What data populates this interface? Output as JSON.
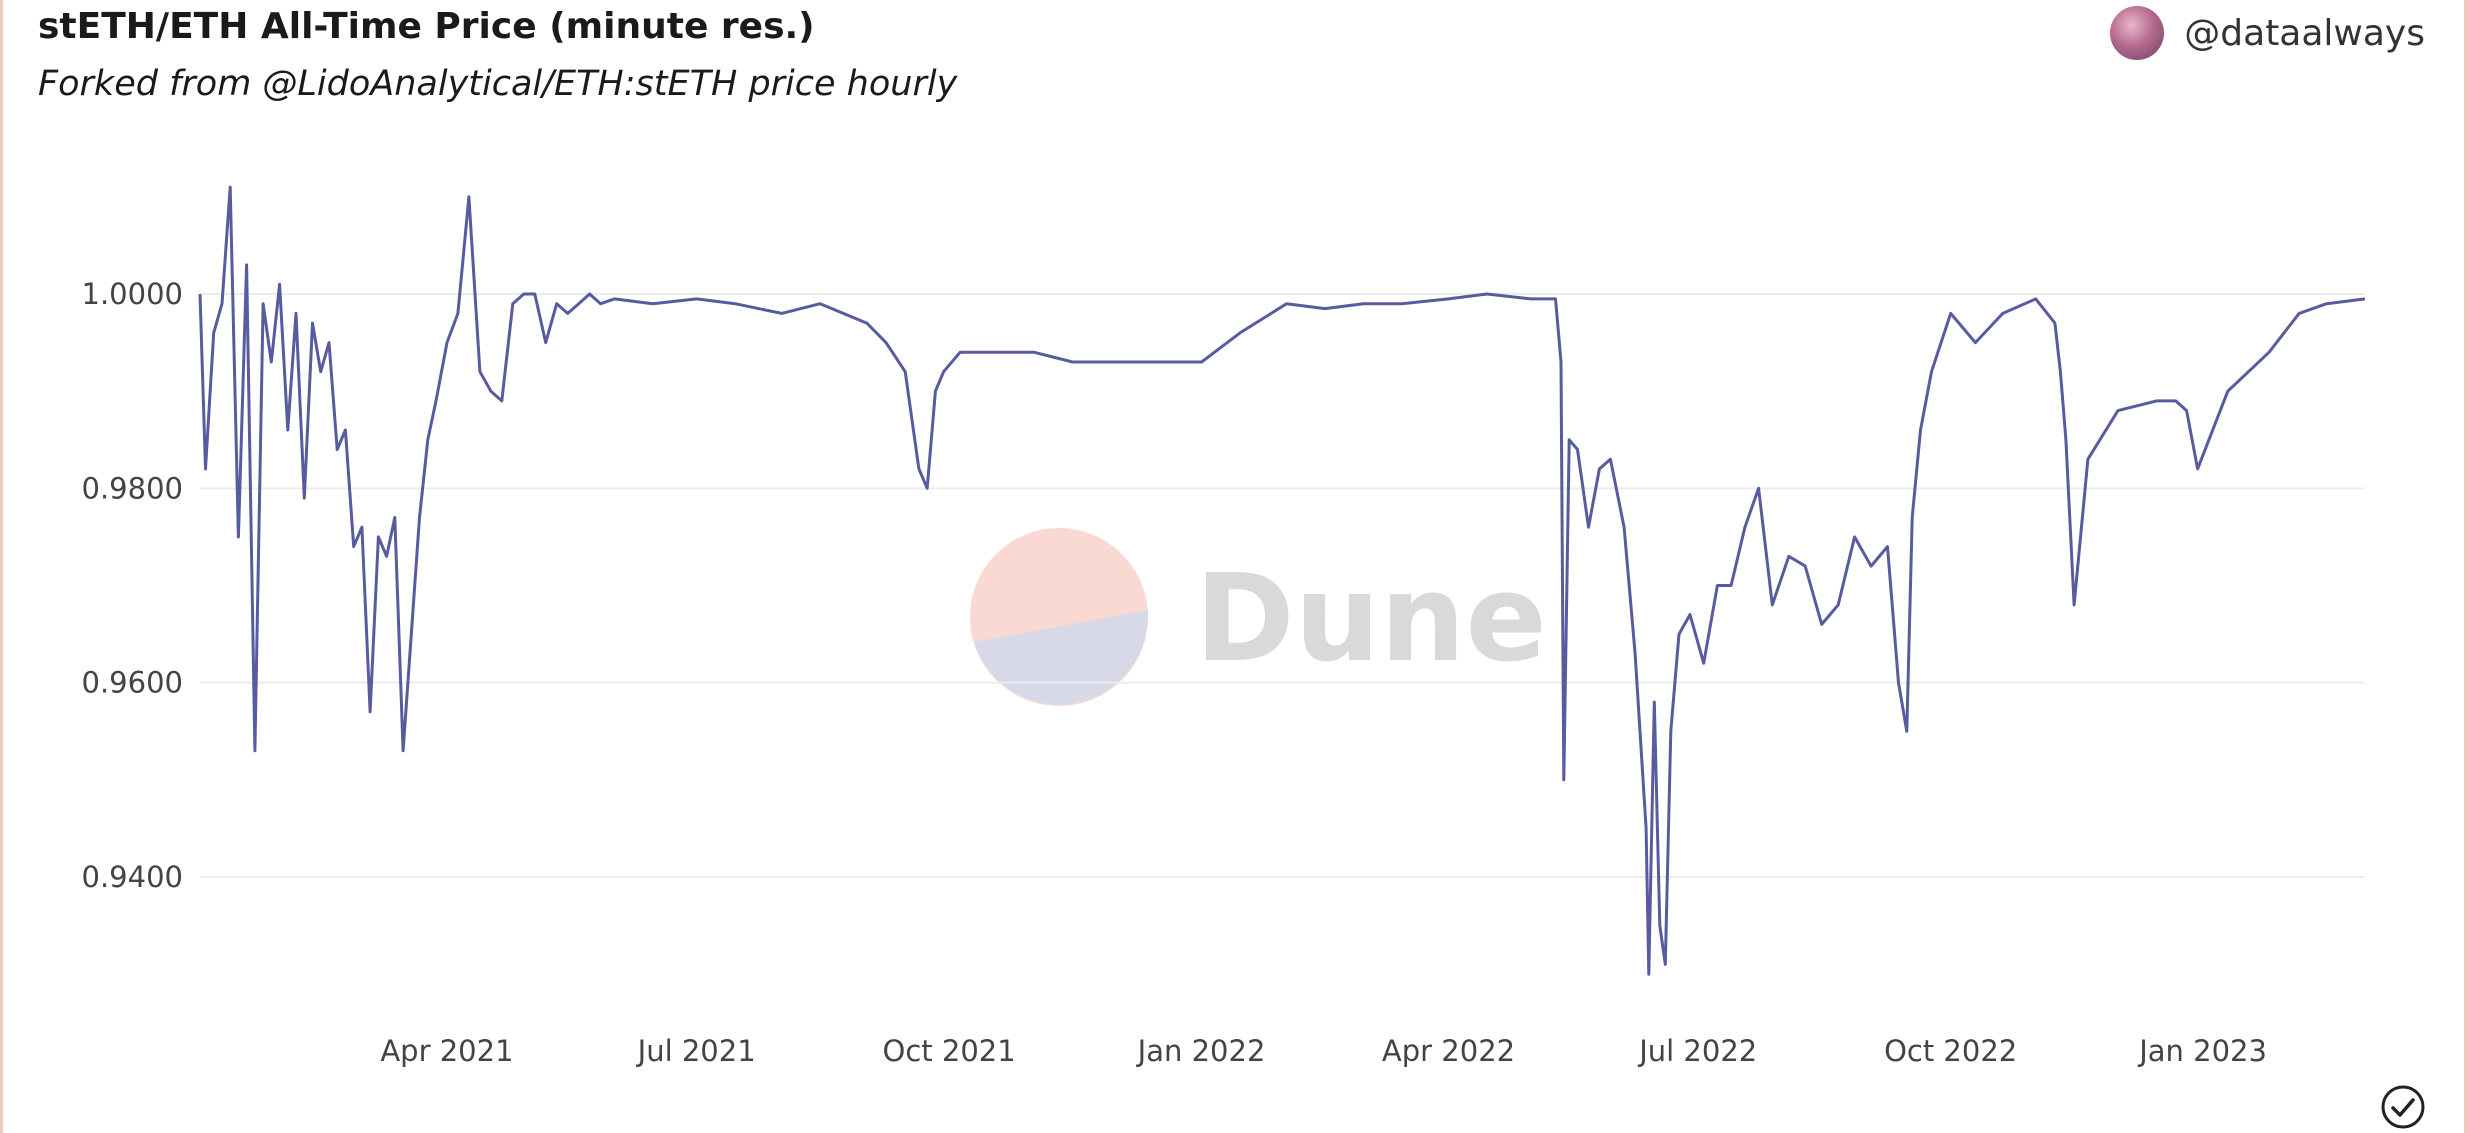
{
  "header": {
    "title": "stETH/ETH All-Time Price (minute res.)",
    "subtitle": "Forked from @LidoAnalytical/ETH:stETH price hourly",
    "user_handle": "@dataalways"
  },
  "watermark": {
    "text": "Dune"
  },
  "colors": {
    "line": "#575c9e",
    "grid": "#ececec",
    "watermark_top": "#f9d9d2",
    "watermark_bottom": "#d8d9e8"
  },
  "icons": {
    "avatar": "user-avatar",
    "status": "check-circle-icon"
  },
  "chart_data": {
    "type": "line",
    "title": "stETH/ETH All-Time Price (minute res.)",
    "xlabel": "",
    "ylabel": "",
    "x_start": "2021-01-01",
    "x_end": "2023-03-01",
    "ylim": [
      0.925,
      1.0135
    ],
    "y_ticks": [
      "0.9400",
      "0.9600",
      "0.9800",
      "1.0000"
    ],
    "y_tick_values": [
      0.94,
      0.96,
      0.98,
      1.0
    ],
    "x_ticks": [
      "Apr 2021",
      "Jul 2021",
      "Oct 2021",
      "Jan 2022",
      "Apr 2022",
      "Jul 2022",
      "Oct 2022",
      "Jan 2023"
    ],
    "x_tick_dates": [
      "2021-04-01",
      "2021-07-01",
      "2021-10-01",
      "2022-01-01",
      "2022-04-01",
      "2022-07-01",
      "2022-10-01",
      "2023-01-01"
    ],
    "grid": true,
    "legend": "none",
    "series": [
      {
        "x": [
          "2021-01-01",
          "2021-01-03",
          "2021-01-06",
          "2021-01-09",
          "2021-01-12",
          "2021-01-15",
          "2021-01-18",
          "2021-01-21",
          "2021-01-24",
          "2021-01-27",
          "2021-01-30",
          "2021-02-02",
          "2021-02-05",
          "2021-02-08",
          "2021-02-11",
          "2021-02-14",
          "2021-02-17",
          "2021-02-20",
          "2021-02-23",
          "2021-02-26",
          "2021-03-01",
          "2021-03-04",
          "2021-03-07",
          "2021-03-10",
          "2021-03-13",
          "2021-03-16",
          "2021-03-19",
          "2021-03-22",
          "2021-03-25",
          "2021-03-28",
          "2021-04-01",
          "2021-04-05",
          "2021-04-09",
          "2021-04-13",
          "2021-04-17",
          "2021-04-21",
          "2021-04-25",
          "2021-04-29",
          "2021-05-03",
          "2021-05-07",
          "2021-05-11",
          "2021-05-15",
          "2021-05-19",
          "2021-05-23",
          "2021-05-27",
          "2021-06-01",
          "2021-06-15",
          "2021-07-01",
          "2021-07-15",
          "2021-08-01",
          "2021-08-15",
          "2021-09-01",
          "2021-09-08",
          "2021-09-15",
          "2021-09-20",
          "2021-09-23",
          "2021-09-26",
          "2021-09-29",
          "2021-10-05",
          "2021-10-15",
          "2021-11-01",
          "2021-11-15",
          "2021-12-01",
          "2021-12-15",
          "2022-01-01",
          "2022-01-15",
          "2022-02-01",
          "2022-02-15",
          "2022-03-01",
          "2022-03-15",
          "2022-04-01",
          "2022-04-15",
          "2022-05-01",
          "2022-05-10",
          "2022-05-12",
          "2022-05-13",
          "2022-05-15",
          "2022-05-18",
          "2022-05-22",
          "2022-05-26",
          "2022-05-30",
          "2022-06-04",
          "2022-06-08",
          "2022-06-12",
          "2022-06-13",
          "2022-06-15",
          "2022-06-17",
          "2022-06-19",
          "2022-06-21",
          "2022-06-24",
          "2022-06-28",
          "2022-07-03",
          "2022-07-08",
          "2022-07-13",
          "2022-07-18",
          "2022-07-23",
          "2022-07-28",
          "2022-08-03",
          "2022-08-09",
          "2022-08-15",
          "2022-08-21",
          "2022-08-27",
          "2022-09-02",
          "2022-09-08",
          "2022-09-12",
          "2022-09-15",
          "2022-09-17",
          "2022-09-20",
          "2022-09-24",
          "2022-10-01",
          "2022-10-10",
          "2022-10-20",
          "2022-11-01",
          "2022-11-08",
          "2022-11-10",
          "2022-11-12",
          "2022-11-15",
          "2022-11-20",
          "2022-12-01",
          "2022-12-15",
          "2022-12-22",
          "2022-12-26",
          "2022-12-30",
          "2023-01-10",
          "2023-01-25",
          "2023-02-05",
          "2023-02-15",
          "2023-03-01"
        ],
        "y": [
          1.0,
          0.982,
          0.996,
          0.999,
          1.011,
          0.975,
          1.003,
          0.953,
          0.999,
          0.993,
          1.001,
          0.986,
          0.998,
          0.979,
          0.997,
          0.992,
          0.995,
          0.984,
          0.986,
          0.974,
          0.976,
          0.957,
          0.975,
          0.973,
          0.977,
          0.953,
          0.965,
          0.977,
          0.985,
          0.989,
          0.995,
          0.998,
          1.01,
          0.992,
          0.99,
          0.989,
          0.999,
          1.0,
          1.0,
          0.995,
          0.999,
          0.998,
          0.999,
          1.0,
          0.999,
          0.9995,
          0.999,
          0.9995,
          0.999,
          0.998,
          0.999,
          0.997,
          0.995,
          0.992,
          0.982,
          0.98,
          0.99,
          0.992,
          0.994,
          0.994,
          0.994,
          0.993,
          0.993,
          0.993,
          0.993,
          0.996,
          0.999,
          0.9985,
          0.999,
          0.999,
          0.9995,
          1.0,
          0.9995,
          0.9995,
          0.993,
          0.95,
          0.985,
          0.984,
          0.976,
          0.982,
          0.983,
          0.976,
          0.963,
          0.945,
          0.93,
          0.958,
          0.935,
          0.931,
          0.955,
          0.965,
          0.967,
          0.962,
          0.97,
          0.97,
          0.976,
          0.98,
          0.968,
          0.973,
          0.972,
          0.966,
          0.968,
          0.975,
          0.972,
          0.974,
          0.96,
          0.955,
          0.977,
          0.986,
          0.992,
          0.998,
          0.995,
          0.998,
          0.9995,
          0.997,
          0.992,
          0.985,
          0.968,
          0.983,
          0.988,
          0.989,
          0.989,
          0.988,
          0.982,
          0.99,
          0.994,
          0.998,
          0.999,
          0.9995
        ]
      }
    ]
  }
}
